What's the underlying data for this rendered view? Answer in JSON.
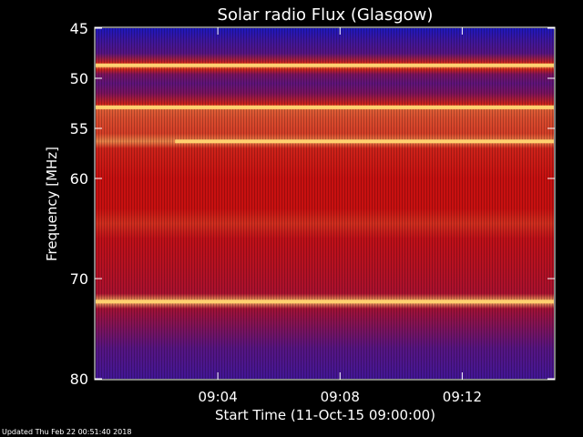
{
  "footer": {
    "updated": "Updated Thu Feb 22 00:51:40 2018"
  },
  "chart_data": {
    "type": "heatmap",
    "title": "Solar radio Flux (Glasgow)",
    "xlabel": "Start Time (11-Oct-15 09:00:00)",
    "ylabel": "Frequency [MHz]",
    "x_unit": "minutes after 09:00",
    "xlim": [
      0,
      15
    ],
    "ylim": [
      45,
      80
    ],
    "y_reversed": true,
    "y_ticks": [
      {
        "value": 45,
        "label": "45"
      },
      {
        "value": 50,
        "label": "50"
      },
      {
        "value": 55,
        "label": "55"
      },
      {
        "value": 60,
        "label": "60"
      },
      {
        "value": 70,
        "label": "70"
      },
      {
        "value": 80,
        "label": "80"
      }
    ],
    "x_ticks": [
      {
        "value": 4,
        "label": "09:04"
      },
      {
        "value": 8,
        "label": "09:08"
      },
      {
        "value": 12,
        "label": "09:12"
      }
    ],
    "colors": {
      "low": "#0a18d0",
      "mid": "#c81010",
      "high": "#ffd070",
      "background": "#000000",
      "axis": "#ffffff"
    },
    "intensity_profile": [
      {
        "freq": 45.0,
        "level": 0.05
      },
      {
        "freq": 46.0,
        "level": 0.12
      },
      {
        "freq": 47.5,
        "level": 0.2
      },
      {
        "freq": 48.5,
        "level": 0.55
      },
      {
        "freq": 48.7,
        "level": 0.95
      },
      {
        "freq": 49.1,
        "level": 0.55
      },
      {
        "freq": 49.6,
        "level": 0.3
      },
      {
        "freq": 50.5,
        "level": 0.22
      },
      {
        "freq": 51.5,
        "level": 0.3
      },
      {
        "freq": 52.6,
        "level": 0.55
      },
      {
        "freq": 52.9,
        "level": 0.92
      },
      {
        "freq": 53.2,
        "level": 0.7
      },
      {
        "freq": 54.0,
        "level": 0.66
      },
      {
        "freq": 55.5,
        "level": 0.62
      },
      {
        "freq": 56.3,
        "level": 0.8
      },
      {
        "freq": 57.0,
        "level": 0.55
      },
      {
        "freq": 60.0,
        "level": 0.5
      },
      {
        "freq": 63.0,
        "level": 0.5
      },
      {
        "freq": 64.5,
        "level": 0.58
      },
      {
        "freq": 66.0,
        "level": 0.48
      },
      {
        "freq": 69.0,
        "level": 0.45
      },
      {
        "freq": 71.5,
        "level": 0.42
      },
      {
        "freq": 72.3,
        "level": 0.92
      },
      {
        "freq": 73.0,
        "level": 0.4
      },
      {
        "freq": 75.0,
        "level": 0.3
      },
      {
        "freq": 77.0,
        "level": 0.2
      },
      {
        "freq": 80.0,
        "level": 0.15
      }
    ],
    "bright_lines": [
      {
        "freq": 48.7,
        "t_start": 0,
        "t_end": 15
      },
      {
        "freq": 52.9,
        "t_start": 0,
        "t_end": 15
      },
      {
        "freq": 56.3,
        "t_start": 2.6,
        "t_end": 15
      },
      {
        "freq": 72.3,
        "t_start": 0,
        "t_end": 15
      }
    ]
  }
}
